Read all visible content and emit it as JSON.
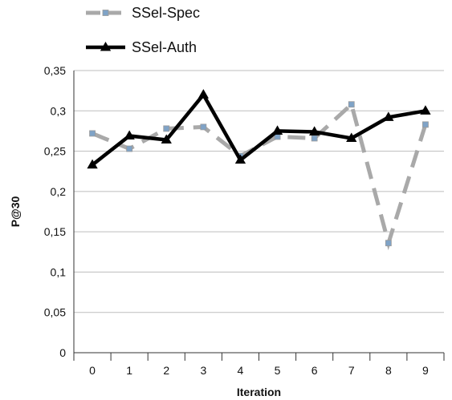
{
  "chart_data": {
    "type": "line",
    "title": "",
    "xlabel": "Iteration",
    "ylabel": "P@30",
    "categories": [
      "0",
      "1",
      "2",
      "3",
      "4",
      "5",
      "6",
      "7",
      "8",
      "9"
    ],
    "ylim": [
      0,
      0.35
    ],
    "y_ticks": [
      0,
      0.05,
      0.1,
      0.15,
      0.2,
      0.25,
      0.3,
      0.35
    ],
    "y_tick_labels": [
      "0",
      "0,05",
      "0,1",
      "0,15",
      "0,2",
      "0,25",
      "0,3",
      "0,35"
    ],
    "grid": true,
    "legend_position": "top-left",
    "series": [
      {
        "name": "SSel-Spec",
        "values": [
          0.272,
          0.253,
          0.278,
          0.28,
          0.244,
          0.268,
          0.266,
          0.308,
          0.136,
          0.283
        ],
        "color": "#a9a9a9",
        "marker_color": "#7fa3c7",
        "line_style": "dashed",
        "marker": "square"
      },
      {
        "name": "SSel-Auth",
        "values": [
          0.233,
          0.269,
          0.264,
          0.32,
          0.239,
          0.275,
          0.274,
          0.266,
          0.292,
          0.3
        ],
        "color": "#000000",
        "marker_color": "#000000",
        "line_style": "solid",
        "marker": "triangle"
      }
    ]
  }
}
